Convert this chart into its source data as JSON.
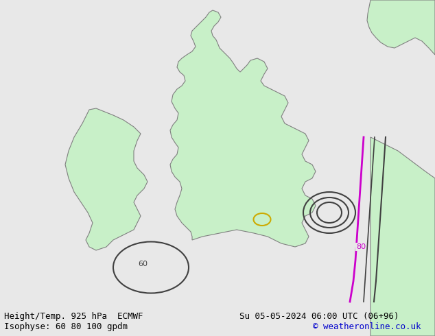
{
  "title_left": "Height/Temp. 925 hPa  ECMWF",
  "title_right": "Su 05-05-2024 06:00 UTC (06+96)",
  "subtitle_left": "Isophyse: 60 80 100 gpdm",
  "subtitle_right": "© weatheronline.co.uk",
  "background_color": "#e8e8e8",
  "land_color": "#c8f0c8",
  "border_color": "#808080",
  "text_color": "#000000",
  "title_fontsize": 9,
  "subtitle_fontsize": 9,
  "copyright_color": "#0000cc",
  "isobar_color_dark": "#404040",
  "isobar_color_magenta": "#cc00cc",
  "isobar_color_yellow": "#ccaa00",
  "fig_width": 6.34,
  "fig_height": 4.9
}
